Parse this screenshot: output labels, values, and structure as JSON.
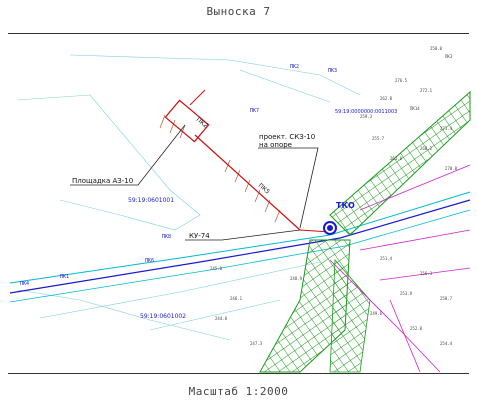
{
  "header": {
    "title": "Выноска 7"
  },
  "footer": {
    "scale": "Масштаб 1:2000"
  },
  "labels": {
    "site": "Площадка АЗ-10",
    "planned": "проект. СКЗ-10",
    "planned2": "на опоре",
    "ku": "КУ-74",
    "tko": "ТКО",
    "cad1": "59:19:0000000:0011003",
    "cad2": "59:19:0601001",
    "cad3": "59:19:0601002",
    "pk2": "ПК2",
    "pk5": "ПК5"
  },
  "colors": {
    "green": "#1a9a1a",
    "blue": "#1a1ad0",
    "cyan": "#00b8d8",
    "magenta": "#d020d0",
    "brown": "#b04010",
    "red": "#d01010"
  }
}
